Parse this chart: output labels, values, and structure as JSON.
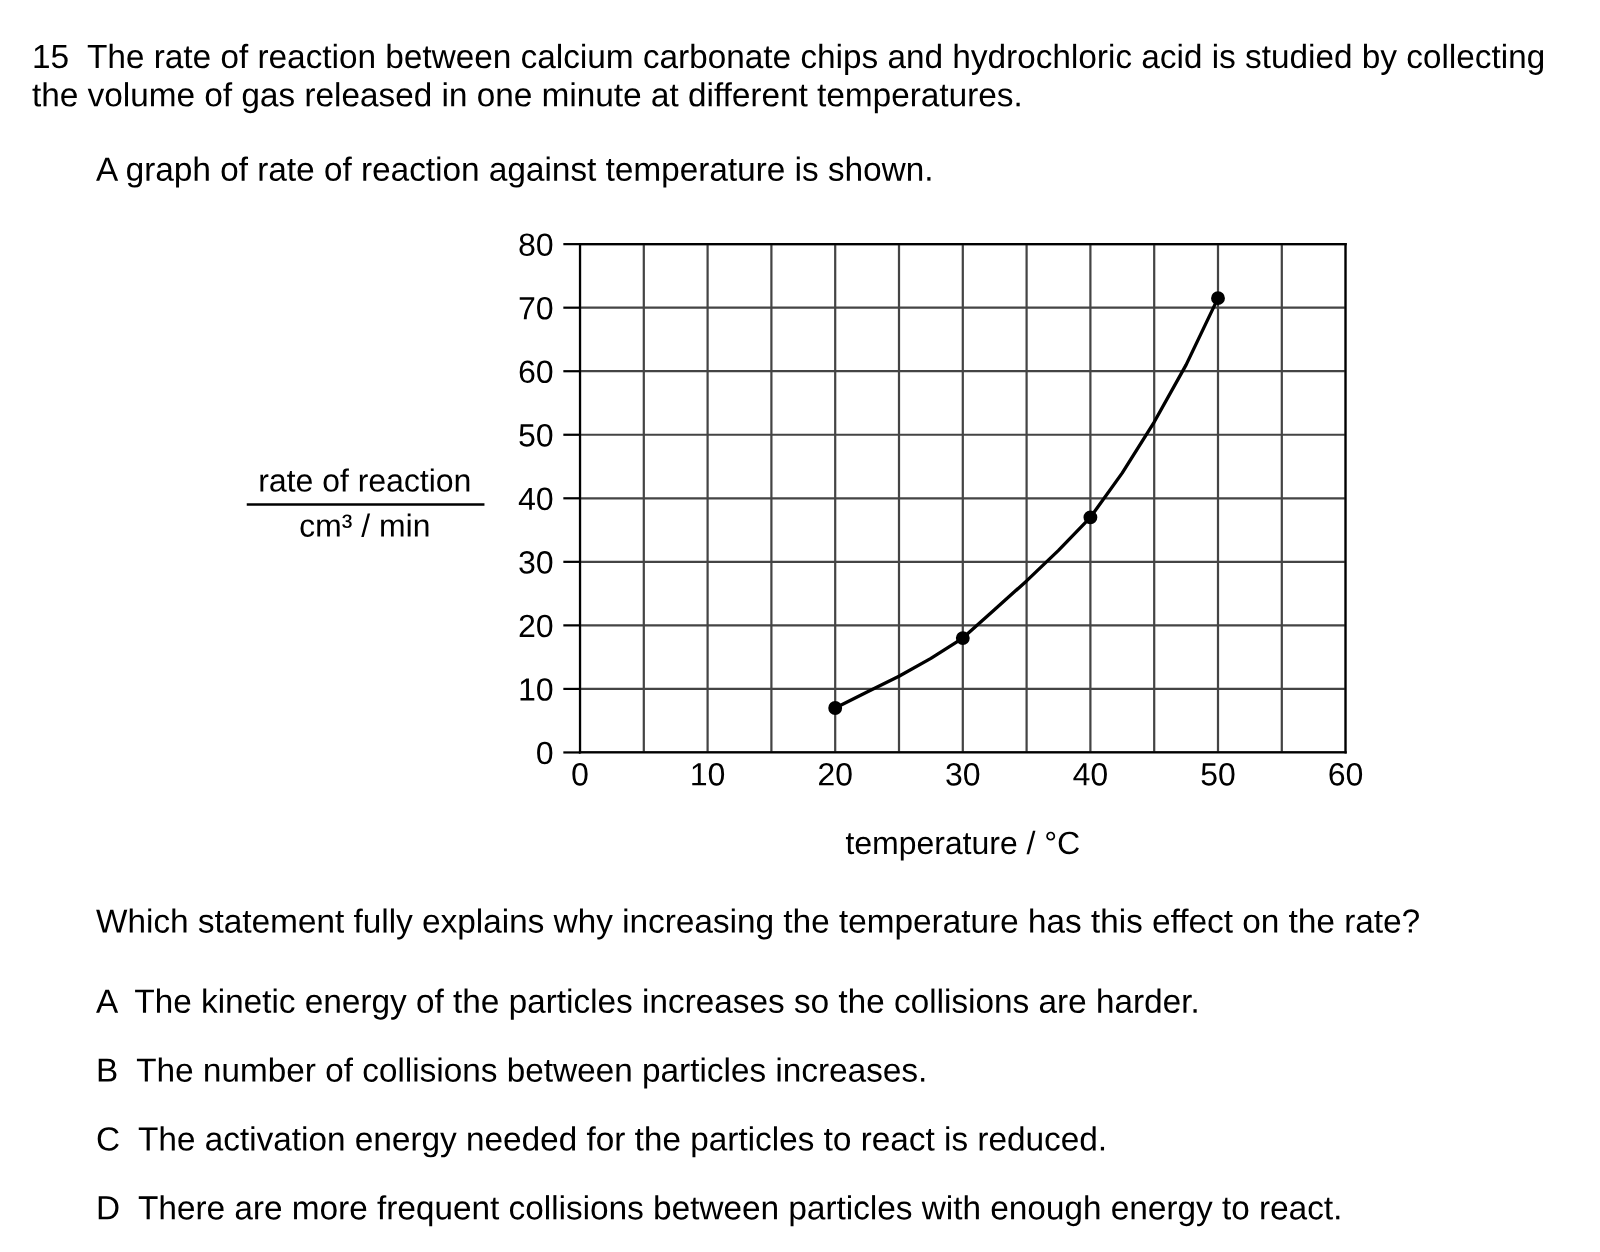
{
  "chart_data": {
    "type": "line",
    "title": "15  The rate of reaction between calcium carbonate chips and hydrochloric acid is studied by collecting the volume of gas released in one minute at different temperatures.",
    "subtitle": "A graph of rate of reaction against temperature is shown.",
    "xlabel": "temperature / °C",
    "ylabel": "rate of reaction\ncm³ / min",
    "x": [
      20,
      30,
      40,
      50
    ],
    "series": [
      {
        "color": "#000000",
        "x": [
          20,
          22.5,
          25,
          27.5,
          30,
          32.5,
          35,
          37.5,
          40,
          42.5,
          45,
          47.5,
          50
        ],
        "values": [
          7,
          9.5,
          12,
          14.8,
          18,
          22.5,
          27,
          31.8,
          37,
          44,
          52,
          61,
          71.5
        ]
      },
      {
        "type": "scatter",
        "marker": "circle",
        "color": "#000000",
        "values": [
          7,
          18,
          37,
          71.5
        ]
      }
    ],
    "line_style": "solid",
    "grid": true,
    "xlim": [
      0,
      60
    ],
    "ylim": [
      0,
      80
    ],
    "xticks": [
      0,
      {
        "value": 5,
        "label": null
      },
      10,
      {
        "value": 15,
        "label": null
      },
      20,
      {
        "value": 25,
        "label": null
      },
      30,
      {
        "value": 35,
        "label": null
      },
      40,
      {
        "value": 45,
        "label": null
      },
      50,
      {
        "value": 55,
        "label": null
      },
      60
    ],
    "yticks": [
      0,
      10,
      20,
      30,
      40,
      50,
      60,
      70,
      80
    ],
    "annotations": [
      "Which statement fully explains why increasing the temperature has this effect on the rate?",
      "A  The kinetic energy of the particles increases so the collisions are harder.",
      "B  The number of collisions between particles increases.",
      "C  The activation energy needed for the particles to react is reduced.",
      "D  There are more frequent collisions between particles with enough energy to react."
    ]
  }
}
